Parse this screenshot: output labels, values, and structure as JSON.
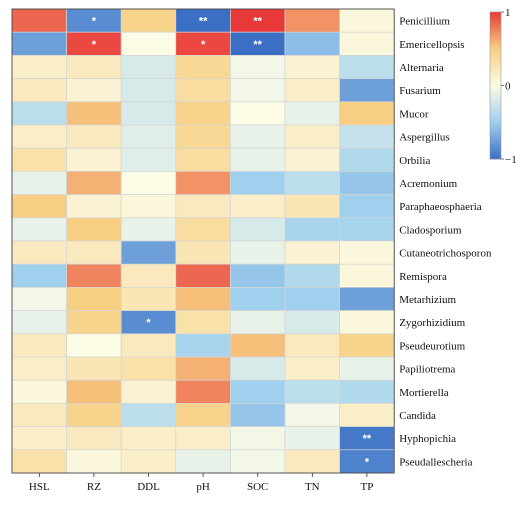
{
  "chart_data": {
    "type": "heatmap",
    "title": "",
    "xlabel": "",
    "ylabel": "",
    "columns": [
      "HSL",
      "RZ",
      "DDL",
      "pH",
      "SOC",
      "TN",
      "TP"
    ],
    "rows": [
      "Penicillium",
      "Emericellopsis",
      "Alternaria",
      "Fusarium",
      "Mucor",
      "Aspergillus",
      "Orbilia",
      "Acremonium",
      "Paraphaeosphaeria",
      "Cladosporium",
      "Cutaneotrichosporon",
      "Remispora",
      "Metarhizium",
      "Zygorhizidium",
      "Pseudeurotium",
      "Papiliotrema",
      "Mortierella",
      "Candida",
      "Hyphopichia",
      "Pseudallescheria"
    ],
    "values": [
      [
        0.85,
        -0.85,
        0.45,
        -1.0,
        1.0,
        0.7,
        0.05
      ],
      [
        -0.75,
        0.95,
        0.0,
        0.95,
        -1.0,
        -0.6,
        0.05
      ],
      [
        0.15,
        0.2,
        -0.2,
        0.4,
        -0.05,
        0.1,
        -0.35
      ],
      [
        0.2,
        0.1,
        -0.2,
        0.35,
        -0.05,
        0.15,
        -0.75
      ],
      [
        -0.35,
        0.55,
        -0.2,
        0.45,
        0.0,
        -0.1,
        0.5
      ],
      [
        0.15,
        0.2,
        -0.15,
        0.4,
        -0.1,
        0.15,
        -0.3
      ],
      [
        0.3,
        0.1,
        -0.15,
        0.35,
        -0.1,
        0.1,
        -0.4
      ],
      [
        -0.1,
        0.6,
        0.0,
        0.7,
        -0.5,
        -0.35,
        -0.55
      ],
      [
        0.5,
        0.1,
        0.05,
        0.2,
        0.15,
        0.25,
        -0.5
      ],
      [
        -0.1,
        0.5,
        -0.1,
        0.35,
        -0.2,
        -0.45,
        -0.45
      ],
      [
        0.2,
        0.2,
        -0.75,
        0.25,
        -0.1,
        0.1,
        0.05
      ],
      [
        -0.5,
        0.75,
        0.2,
        0.85,
        -0.55,
        -0.4,
        0.05
      ],
      [
        -0.05,
        0.5,
        0.25,
        0.55,
        -0.5,
        -0.5,
        -0.75
      ],
      [
        -0.1,
        0.45,
        -0.85,
        0.3,
        -0.1,
        -0.2,
        0.05
      ],
      [
        0.2,
        0.0,
        0.2,
        -0.45,
        0.55,
        0.2,
        0.45
      ],
      [
        0.15,
        0.25,
        0.3,
        0.6,
        -0.2,
        0.15,
        -0.1
      ],
      [
        0.05,
        0.55,
        0.1,
        0.75,
        -0.5,
        -0.35,
        -0.4
      ],
      [
        0.2,
        0.45,
        -0.35,
        0.45,
        -0.55,
        -0.05,
        0.15
      ],
      [
        0.15,
        0.2,
        0.15,
        0.15,
        -0.05,
        -0.1,
        -0.95
      ],
      [
        0.3,
        0.05,
        0.15,
        -0.1,
        -0.05,
        0.2,
        -0.9
      ]
    ],
    "significance": [
      [
        "",
        "*",
        "",
        "**",
        "**",
        "",
        ""
      ],
      [
        "",
        "*",
        "",
        "*",
        "**",
        "",
        ""
      ],
      [
        "",
        "",
        "",
        "",
        "",
        "",
        ""
      ],
      [
        "",
        "",
        "",
        "",
        "",
        "",
        ""
      ],
      [
        "",
        "",
        "",
        "",
        "",
        "",
        ""
      ],
      [
        "",
        "",
        "",
        "",
        "",
        "",
        ""
      ],
      [
        "",
        "",
        "",
        "",
        "",
        "",
        ""
      ],
      [
        "",
        "",
        "",
        "",
        "",
        "",
        ""
      ],
      [
        "",
        "",
        "",
        "",
        "",
        "",
        ""
      ],
      [
        "",
        "",
        "",
        "",
        "",
        "",
        ""
      ],
      [
        "",
        "",
        "",
        "",
        "",
        "",
        ""
      ],
      [
        "",
        "",
        "",
        "",
        "",
        "",
        ""
      ],
      [
        "",
        "",
        "",
        "",
        "",
        "",
        ""
      ],
      [
        "",
        "",
        "*",
        "",
        "",
        "",
        ""
      ],
      [
        "",
        "",
        "",
        "",
        "",
        "",
        ""
      ],
      [
        "",
        "",
        "",
        "",
        "",
        "",
        ""
      ],
      [
        "",
        "",
        "",
        "",
        "",
        "",
        ""
      ],
      [
        "",
        "",
        "",
        "",
        "",
        "",
        ""
      ],
      [
        "",
        "",
        "",
        "",
        "",
        "",
        "**"
      ],
      [
        "",
        "",
        "",
        "",
        "",
        "",
        "*"
      ]
    ],
    "colorbar": {
      "range": [
        -1,
        1
      ],
      "tick_labels": [
        "1",
        "0",
        "−1"
      ],
      "tick_values": [
        1,
        0,
        -1
      ],
      "placement": "right"
    },
    "colors": {
      "negative": "#3b6fc4",
      "mid_negative": "#9fd0ee",
      "neutral": "#fbfbe6",
      "mid_positive": "#f8cf82",
      "positive": "#e8393a"
    },
    "grid": true
  }
}
